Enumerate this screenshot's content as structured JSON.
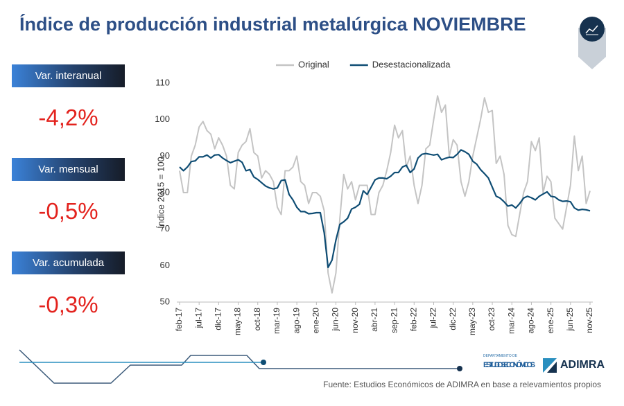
{
  "chart_data": {
    "type": "line",
    "title": "Índice de producción industrial metalúrgica NOVIEMBRE",
    "y_label": "Índice 2015 = 100",
    "categories": [
      "feb-17",
      null,
      null,
      null,
      null,
      "jul-17",
      null,
      null,
      null,
      null,
      "dic-17",
      null,
      null,
      null,
      null,
      "may-18",
      null,
      null,
      null,
      null,
      "oct-18",
      null,
      null,
      null,
      null,
      "mar-19",
      null,
      null,
      null,
      null,
      "ago-19",
      null,
      null,
      null,
      null,
      "ene-20",
      null,
      null,
      null,
      null,
      "jun-20",
      null,
      null,
      null,
      null,
      "nov-20",
      null,
      null,
      null,
      null,
      "abr-21",
      null,
      null,
      null,
      null,
      "sep-21",
      null,
      null,
      null,
      null,
      "feb-22",
      null,
      null,
      null,
      null,
      "jul-22",
      null,
      null,
      null,
      null,
      "dic-22",
      null,
      null,
      null,
      null,
      "may-23",
      null,
      null,
      null,
      null,
      "oct-23",
      null,
      null,
      null,
      null,
      "mar-24",
      null,
      null,
      null,
      null,
      "ago-24",
      null,
      null,
      null,
      null,
      "ene-25",
      null,
      null,
      null,
      null,
      "jun-25",
      null,
      null,
      null,
      null,
      "nov-25"
    ],
    "series": [
      {
        "name": "Original",
        "color": "#c4c4c4",
        "values": [
          86,
          80,
          80,
          90,
          93,
          98,
          99.5,
          97,
          96,
          92,
          95,
          93,
          90,
          82,
          81,
          91,
          93,
          94,
          97.5,
          91,
          90,
          84,
          86,
          85,
          83,
          76,
          74,
          86,
          86,
          87,
          90,
          83,
          82,
          77,
          80,
          80,
          79,
          75,
          58,
          52.5,
          58,
          73,
          85,
          81,
          83,
          78,
          82,
          82,
          82,
          74,
          74,
          80,
          82,
          86,
          91,
          98.5,
          95,
          97,
          87,
          90,
          82,
          77,
          82,
          92,
          93,
          100,
          106.5,
          102,
          104,
          90,
          94.5,
          93,
          83,
          79,
          83,
          90,
          95,
          100,
          106,
          102,
          102.5,
          88,
          90,
          85,
          71,
          68.5,
          68,
          74,
          80,
          83,
          94,
          91.5,
          95,
          80,
          84.5,
          83,
          73,
          71.5,
          70,
          76,
          82,
          95.5,
          86,
          90,
          77,
          80.5
        ]
      },
      {
        "name": "Desestacionalizada",
        "color": "#0f4d74",
        "values": [
          87,
          86,
          87,
          88.5,
          88.7,
          89.8,
          89.8,
          90.3,
          89.5,
          90.3,
          90.4,
          89.5,
          88.8,
          88.2,
          88.6,
          89,
          88.3,
          86,
          86.3,
          84.3,
          83.6,
          82.7,
          81.8,
          81.3,
          81,
          81.3,
          83.3,
          83.5,
          79.5,
          78,
          76,
          74.8,
          74.8,
          74.2,
          74.3,
          74.5,
          74.5,
          69,
          59.5,
          61.5,
          67,
          71.3,
          72,
          73,
          75.5,
          76,
          76.8,
          80.5,
          79.5,
          81.5,
          83.5,
          84,
          84,
          83.8,
          84.5,
          85.5,
          85.5,
          87,
          87.5,
          85.5,
          86.5,
          89.5,
          90.5,
          90.7,
          90.5,
          90.3,
          90.5,
          89,
          89.4,
          89.7,
          89.6,
          90.5,
          91.7,
          91.2,
          90.5,
          88.6,
          87.8,
          86.3,
          85.2,
          84,
          81.5,
          79,
          78.5,
          77.5,
          76.3,
          76.6,
          75.8,
          77,
          78.5,
          79,
          78.6,
          78,
          79,
          79.6,
          80.2,
          79,
          78.8,
          78,
          77.6,
          77.7,
          77.5,
          75.8,
          75.2,
          75.4,
          75.3,
          75
        ]
      }
    ],
    "ylim": [
      50,
      110
    ],
    "yticks": [
      50,
      60,
      70,
      80,
      90,
      100,
      110
    ],
    "grid": false
  },
  "kpis": [
    {
      "label": "Var. interanual",
      "value": "-4,2%"
    },
    {
      "label": "Var. mensual",
      "value": "-0,5%"
    },
    {
      "label": "Var. acumulada",
      "value": "-0,3%"
    }
  ],
  "footer": {
    "dept_small": "DEPARTAMENTO DE",
    "dept": "ESTUDIOS ECONÓMICOS",
    "org": "ADIMRA",
    "source": "Fuente: Estudios Económicos de ADIMRA en base a relevamientos propios"
  }
}
